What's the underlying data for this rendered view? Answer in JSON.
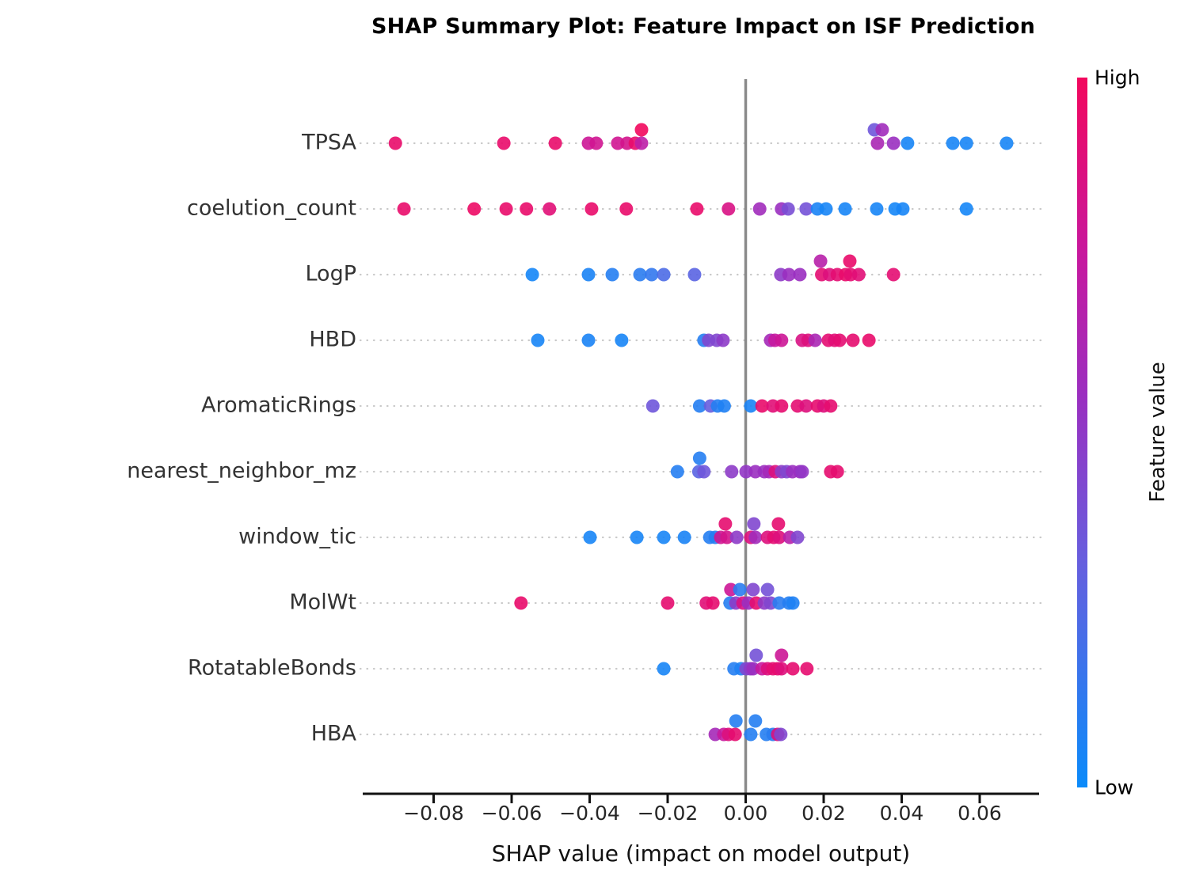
{
  "chart_data": {
    "type": "scatter",
    "subtype": "shap-beeswarm-summary",
    "title": "SHAP Summary Plot: Feature Impact on ISF Prediction",
    "xlabel": "SHAP value (impact on model output)",
    "xlim": [
      -0.098,
      0.075
    ],
    "grid": "dotted-row-lines",
    "x_ticks": [
      {
        "v": -0.08,
        "label": "−0.08"
      },
      {
        "v": -0.06,
        "label": "−0.06"
      },
      {
        "v": -0.04,
        "label": "−0.04"
      },
      {
        "v": -0.02,
        "label": "−0.02"
      },
      {
        "v": 0.0,
        "label": "0.00"
      },
      {
        "v": 0.02,
        "label": "0.02"
      },
      {
        "v": 0.04,
        "label": "0.04"
      },
      {
        "v": 0.06,
        "label": "0.06"
      }
    ],
    "colorbar": {
      "high_label": "High",
      "low_label": "Low",
      "axis_label": "Feature value",
      "high_color": "#f2085d",
      "mid_color": "#9a2fc0",
      "low_color": "#0a8bfa"
    },
    "zero_line_color": "#8a8a8a",
    "point_note": "points are [shap_value, feature_value_t (0=Low blue, 1=High red), raised_flag]",
    "features": [
      {
        "name": "TPSA",
        "points": [
          [
            -0.0898,
            0.95,
            0
          ],
          [
            -0.062,
            0.95,
            0
          ],
          [
            -0.0488,
            0.95,
            0
          ],
          [
            -0.0403,
            0.78,
            0
          ],
          [
            -0.0383,
            0.8,
            0
          ],
          [
            -0.0328,
            0.8,
            0
          ],
          [
            -0.0304,
            0.82,
            0
          ],
          [
            -0.0283,
            0.95,
            0
          ],
          [
            -0.0267,
            0.7,
            0
          ],
          [
            -0.0267,
            1.0,
            1
          ],
          [
            0.033,
            0.38,
            1
          ],
          [
            0.035,
            0.58,
            1
          ],
          [
            0.0338,
            0.62,
            0
          ],
          [
            0.0379,
            0.55,
            0
          ],
          [
            0.0415,
            0.05,
            0
          ],
          [
            0.0531,
            0.05,
            0
          ],
          [
            0.0566,
            0.05,
            0
          ],
          [
            0.0669,
            0.05,
            0
          ]
        ]
      },
      {
        "name": "coelution_count",
        "points": [
          [
            -0.0876,
            0.95,
            0
          ],
          [
            -0.0696,
            0.97,
            0
          ],
          [
            -0.0614,
            0.95,
            0
          ],
          [
            -0.0562,
            0.95,
            0
          ],
          [
            -0.0503,
            0.9,
            0
          ],
          [
            -0.0395,
            0.95,
            0
          ],
          [
            -0.0306,
            0.95,
            0
          ],
          [
            -0.0125,
            0.95,
            0
          ],
          [
            -0.0044,
            0.85,
            0
          ],
          [
            0.0036,
            0.58,
            0
          ],
          [
            0.0092,
            0.55,
            0
          ],
          [
            0.0109,
            0.42,
            0
          ],
          [
            0.0155,
            0.4,
            0
          ],
          [
            0.0184,
            0.06,
            0
          ],
          [
            0.0206,
            0.05,
            0
          ],
          [
            0.0255,
            0.05,
            0
          ],
          [
            0.0336,
            0.05,
            0
          ],
          [
            0.0383,
            0.04,
            0
          ],
          [
            0.0403,
            0.05,
            0
          ],
          [
            0.0566,
            0.04,
            0
          ]
        ]
      },
      {
        "name": "LogP",
        "points": [
          [
            -0.0547,
            0.04,
            0
          ],
          [
            -0.0403,
            0.06,
            0
          ],
          [
            -0.0342,
            0.1,
            0
          ],
          [
            -0.0271,
            0.12,
            0
          ],
          [
            -0.0241,
            0.15,
            0
          ],
          [
            -0.021,
            0.25,
            0
          ],
          [
            -0.0131,
            0.3,
            0
          ],
          [
            0.009,
            0.5,
            0
          ],
          [
            0.0111,
            0.55,
            0
          ],
          [
            0.0139,
            0.55,
            0
          ],
          [
            0.0192,
            0.68,
            1
          ],
          [
            0.0195,
            0.92,
            0
          ],
          [
            0.0215,
            0.88,
            0
          ],
          [
            0.0235,
            0.92,
            0
          ],
          [
            0.0256,
            0.95,
            0
          ],
          [
            0.0267,
            0.95,
            1
          ],
          [
            0.0269,
            0.92,
            0
          ],
          [
            0.029,
            0.9,
            0
          ],
          [
            0.0379,
            0.92,
            0
          ]
        ]
      },
      {
        "name": "HBD",
        "points": [
          [
            -0.0533,
            0.05,
            0
          ],
          [
            -0.0403,
            0.06,
            0
          ],
          [
            -0.0318,
            0.05,
            0
          ],
          [
            -0.0107,
            0.1,
            0
          ],
          [
            -0.0095,
            0.45,
            0
          ],
          [
            -0.0074,
            0.45,
            0
          ],
          [
            -0.0058,
            0.5,
            0
          ],
          [
            0.0064,
            0.6,
            0
          ],
          [
            0.0075,
            0.75,
            0
          ],
          [
            0.0092,
            0.78,
            0
          ],
          [
            0.0145,
            0.85,
            0
          ],
          [
            0.016,
            0.88,
            0
          ],
          [
            0.0178,
            0.62,
            0
          ],
          [
            0.0212,
            0.92,
            0
          ],
          [
            0.0228,
            0.9,
            0
          ],
          [
            0.0241,
            0.92,
            0
          ],
          [
            0.0275,
            0.93,
            0
          ],
          [
            0.0316,
            0.95,
            0
          ]
        ]
      },
      {
        "name": "AromaticRings",
        "points": [
          [
            -0.0238,
            0.38,
            0
          ],
          [
            -0.0118,
            0.1,
            0
          ],
          [
            -0.009,
            0.35,
            0
          ],
          [
            -0.0072,
            0.1,
            0
          ],
          [
            -0.0055,
            0.08,
            0
          ],
          [
            0.0013,
            0.06,
            0
          ],
          [
            0.0042,
            0.95,
            0
          ],
          [
            0.007,
            0.9,
            0
          ],
          [
            0.0092,
            0.93,
            0
          ],
          [
            0.0133,
            0.92,
            0
          ],
          [
            0.0155,
            0.88,
            0
          ],
          [
            0.0184,
            0.93,
            0
          ],
          [
            0.02,
            0.88,
            0
          ],
          [
            0.0218,
            0.93,
            0
          ]
        ]
      },
      {
        "name": "nearest_neighbor_mz",
        "points": [
          [
            -0.0175,
            0.1,
            0
          ],
          [
            -0.0118,
            0.1,
            1
          ],
          [
            -0.012,
            0.3,
            0
          ],
          [
            -0.0107,
            0.38,
            0
          ],
          [
            -0.0036,
            0.5,
            0
          ],
          [
            0.0001,
            0.52,
            0
          ],
          [
            0.0025,
            0.55,
            0
          ],
          [
            0.0048,
            0.55,
            0
          ],
          [
            0.006,
            0.6,
            0
          ],
          [
            0.0076,
            0.88,
            0
          ],
          [
            0.0092,
            0.5,
            0
          ],
          [
            0.0105,
            0.45,
            0
          ],
          [
            0.012,
            0.55,
            0
          ],
          [
            0.0139,
            0.55,
            0
          ],
          [
            0.0145,
            0.52,
            0
          ],
          [
            0.0218,
            0.93,
            0
          ],
          [
            0.0235,
            0.93,
            0
          ]
        ]
      },
      {
        "name": "window_tic",
        "points": [
          [
            -0.0399,
            0.05,
            0
          ],
          [
            -0.0279,
            0.05,
            0
          ],
          [
            -0.021,
            0.05,
            0
          ],
          [
            -0.0157,
            0.06,
            0
          ],
          [
            -0.0092,
            0.1,
            0
          ],
          [
            -0.0078,
            0.1,
            0
          ],
          [
            -0.0064,
            0.8,
            0
          ],
          [
            -0.0052,
            0.93,
            1
          ],
          [
            -0.0048,
            0.82,
            0
          ],
          [
            -0.0023,
            0.5,
            0
          ],
          [
            0.0013,
            0.88,
            0
          ],
          [
            0.0021,
            0.45,
            1
          ],
          [
            0.0025,
            0.58,
            0
          ],
          [
            0.0056,
            0.88,
            0
          ],
          [
            0.0072,
            0.92,
            0
          ],
          [
            0.0084,
            0.93,
            1
          ],
          [
            0.0086,
            0.88,
            0
          ],
          [
            0.0113,
            0.68,
            0
          ],
          [
            0.0133,
            0.45,
            0
          ]
        ]
      },
      {
        "name": "MolWt",
        "points": [
          [
            -0.0576,
            0.95,
            0
          ],
          [
            -0.02,
            0.93,
            0
          ],
          [
            -0.0101,
            0.9,
            0
          ],
          [
            -0.0084,
            0.93,
            0
          ],
          [
            -0.004,
            0.1,
            0
          ],
          [
            -0.0038,
            0.78,
            1
          ],
          [
            -0.0025,
            0.5,
            0
          ],
          [
            -0.0015,
            0.12,
            1
          ],
          [
            -0.0007,
            0.85,
            0
          ],
          [
            0.0007,
            0.55,
            0
          ],
          [
            0.0019,
            0.45,
            1
          ],
          [
            0.0027,
            0.93,
            0
          ],
          [
            0.0048,
            0.5,
            0
          ],
          [
            0.0056,
            0.4,
            1
          ],
          [
            0.0064,
            0.45,
            0
          ],
          [
            0.0086,
            0.12,
            0
          ],
          [
            0.0111,
            0.1,
            0
          ],
          [
            0.0121,
            0.08,
            0
          ]
        ]
      },
      {
        "name": "RotatableBonds",
        "points": [
          [
            -0.021,
            0.05,
            0
          ],
          [
            -0.003,
            0.1,
            0
          ],
          [
            -0.0012,
            0.08,
            0
          ],
          [
            0.0001,
            0.45,
            0
          ],
          [
            0.0012,
            0.5,
            0
          ],
          [
            0.0019,
            0.55,
            0
          ],
          [
            0.0027,
            0.4,
            1
          ],
          [
            0.0042,
            0.75,
            0
          ],
          [
            0.0056,
            0.88,
            0
          ],
          [
            0.007,
            0.92,
            0
          ],
          [
            0.0082,
            0.93,
            0
          ],
          [
            0.0092,
            0.88,
            0
          ],
          [
            0.0092,
            0.78,
            1
          ],
          [
            0.0121,
            0.93,
            0
          ],
          [
            0.0157,
            0.93,
            0
          ]
        ]
      },
      {
        "name": "HBA",
        "points": [
          [
            -0.0078,
            0.6,
            0
          ],
          [
            -0.0056,
            0.75,
            0
          ],
          [
            -0.0044,
            0.88,
            0
          ],
          [
            -0.0027,
            0.93,
            0
          ],
          [
            -0.0025,
            0.1,
            1
          ],
          [
            0.0013,
            0.1,
            0
          ],
          [
            0.0025,
            0.1,
            1
          ],
          [
            0.0053,
            0.1,
            0
          ],
          [
            0.007,
            0.12,
            0
          ],
          [
            0.0082,
            0.88,
            0
          ],
          [
            0.009,
            0.45,
            0
          ]
        ]
      }
    ]
  }
}
